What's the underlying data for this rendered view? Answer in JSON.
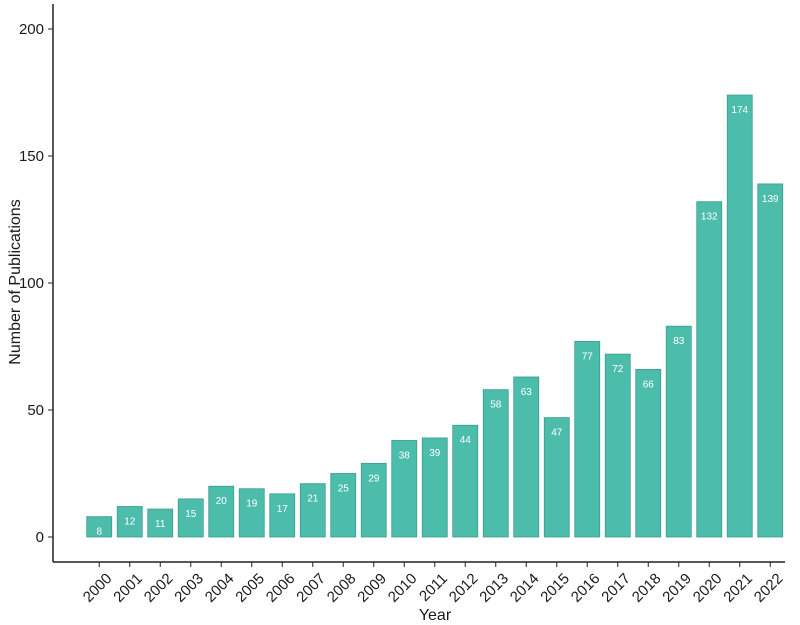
{
  "chart_data": {
    "type": "bar",
    "title": "",
    "xlabel": "Year",
    "ylabel": "Number of Publications",
    "categories": [
      "2000",
      "2001",
      "2002",
      "2003",
      "2004",
      "2005",
      "2006",
      "2007",
      "2008",
      "2009",
      "2010",
      "2011",
      "2012",
      "2013",
      "2014",
      "2015",
      "2016",
      "2017",
      "2018",
      "2019",
      "2020",
      "2021",
      "2022"
    ],
    "values": [
      8,
      12,
      11,
      15,
      20,
      19,
      17,
      21,
      25,
      29,
      38,
      39,
      44,
      58,
      63,
      47,
      77,
      72,
      66,
      83,
      132,
      174,
      139
    ],
    "ylim": [
      0,
      200
    ],
    "yticks": [
      0,
      50,
      100,
      150,
      200
    ],
    "bar_color": "#4dbdab",
    "bar_stroke": "#3a9c8c",
    "grid": false,
    "data_labels": true
  }
}
